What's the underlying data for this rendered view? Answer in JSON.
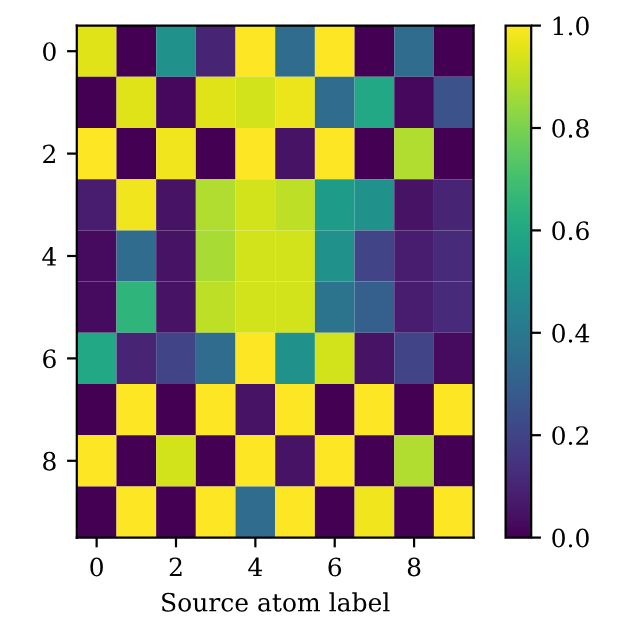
{
  "chart_data": {
    "type": "heatmap",
    "xlabel": "Source atom label",
    "categories": [
      "0",
      null,
      "2",
      null,
      "4",
      null,
      "6",
      null,
      "8",
      null
    ],
    "y_categories": [
      "0",
      null,
      "2",
      null,
      "4",
      null,
      "6",
      null,
      "8",
      null
    ],
    "cells": [
      [
        0.95,
        0.0,
        0.5,
        0.1,
        1.0,
        0.35,
        1.0,
        0.0,
        0.35,
        0.0
      ],
      [
        0.0,
        0.95,
        0.02,
        0.95,
        0.93,
        0.97,
        0.35,
        0.6,
        0.02,
        0.25
      ],
      [
        1.0,
        0.0,
        0.98,
        0.0,
        1.0,
        0.05,
        1.0,
        0.0,
        0.88,
        0.0
      ],
      [
        0.08,
        0.98,
        0.05,
        0.88,
        0.93,
        0.9,
        0.55,
        0.5,
        0.05,
        0.1
      ],
      [
        0.03,
        0.35,
        0.05,
        0.87,
        0.93,
        0.93,
        0.5,
        0.2,
        0.08,
        0.12
      ],
      [
        0.03,
        0.65,
        0.05,
        0.9,
        0.93,
        0.93,
        0.38,
        0.3,
        0.08,
        0.12
      ],
      [
        0.6,
        0.1,
        0.2,
        0.35,
        1.0,
        0.5,
        0.93,
        0.05,
        0.2,
        0.03
      ],
      [
        0.0,
        1.0,
        0.0,
        1.0,
        0.05,
        1.0,
        0.0,
        1.0,
        0.0,
        1.0
      ],
      [
        1.0,
        0.0,
        0.93,
        0.0,
        1.0,
        0.05,
        1.0,
        0.0,
        0.88,
        0.0
      ],
      [
        0.0,
        1.0,
        0.0,
        1.0,
        0.35,
        1.0,
        0.0,
        0.98,
        0.0,
        1.0
      ]
    ],
    "clim": [
      0,
      1
    ],
    "cticks": [
      {
        "value": 0,
        "label": "0.0"
      },
      {
        "value": 0.2,
        "label": "0.2"
      },
      {
        "value": 0.4,
        "label": "0.4"
      },
      {
        "value": 0.6,
        "label": "0.6"
      },
      {
        "value": 0.8,
        "label": "0.8"
      },
      {
        "value": 1,
        "label": "1.0"
      }
    ]
  }
}
